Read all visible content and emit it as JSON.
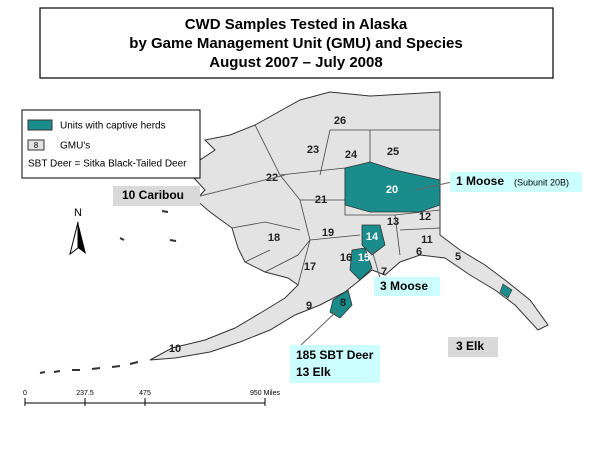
{
  "title": {
    "lines": [
      "CWD Samples Tested in Alaska",
      "by Game Management Unit (GMU) and Species",
      "August 2007 – July 2008"
    ]
  },
  "legend": {
    "captive_herds": "Units with captive herds",
    "gmu_sample": "8",
    "gmu_label": "GMU's",
    "note": "SBT Deer = Sitka Black-Tailed Deer"
  },
  "units": [
    "26",
    "23",
    "24",
    "25",
    "22",
    "20",
    "21",
    "13",
    "12",
    "18",
    "19",
    "14",
    "11",
    "16",
    "6",
    "5",
    "17",
    "15",
    "7",
    "9",
    "8",
    "10"
  ],
  "callouts": [
    {
      "text": "10 Caribou"
    },
    {
      "text": "1 Moose",
      "note": "(Subunit 20B)"
    },
    {
      "text": "3 Moose"
    },
    {
      "text": "3 Elk"
    },
    {
      "lines": [
        "185 SBT Deer",
        "13 Elk"
      ]
    }
  ],
  "north": "N",
  "scale": {
    "ticks": [
      "0",
      "237.5",
      "475",
      "950 Miles"
    ]
  }
}
